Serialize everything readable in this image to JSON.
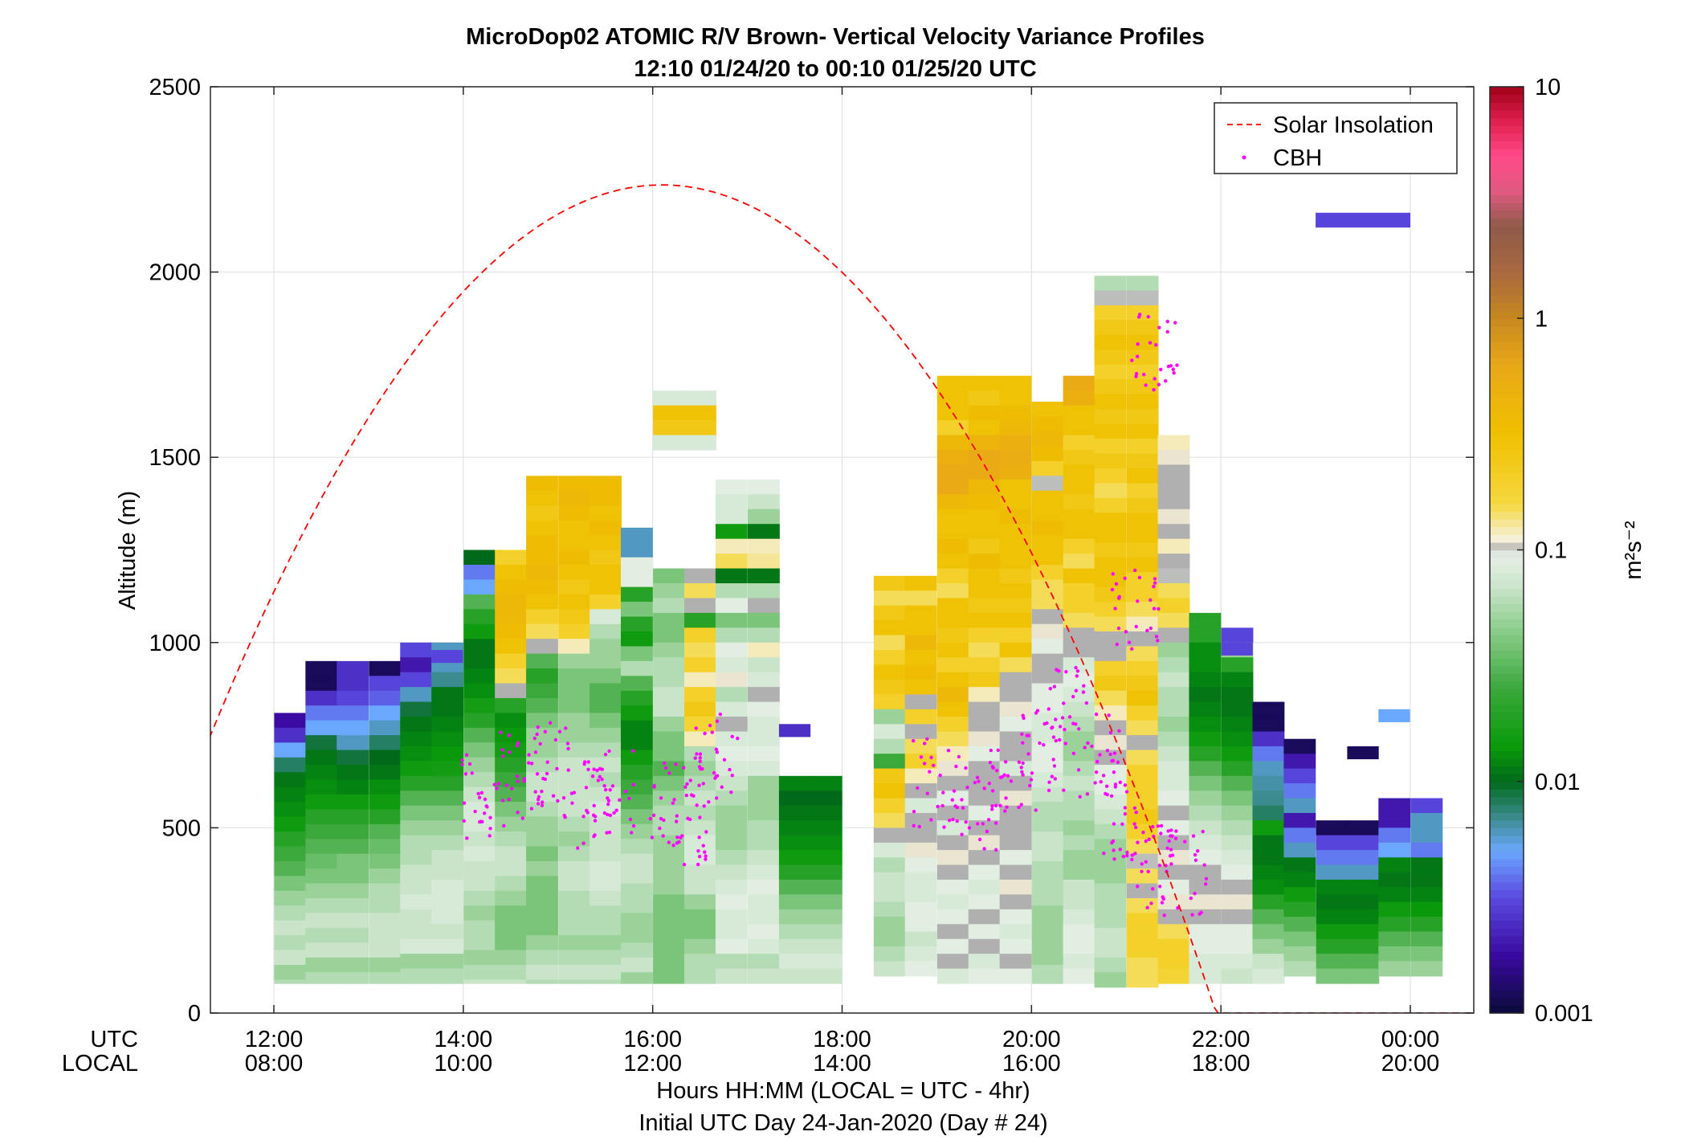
{
  "chart_data": {
    "type": "heatmap",
    "title": "MicroDop02 ATOMIC R/V Brown- Vertical Velocity Variance Profiles",
    "subtitle": "12:10 01/24/20 to 00:10 01/25/20  UTC",
    "ylabel": "Altitude (m)",
    "ylim": [
      0,
      2500
    ],
    "y_ticks": [
      "0",
      "500",
      "1000",
      "1500",
      "2000",
      "2500"
    ],
    "xlim_utc_hours": [
      11.33,
      24.67
    ],
    "x_row_labels": [
      "UTC",
      "LOCAL"
    ],
    "x_ticks_utc": [
      "12:00",
      "14:00",
      "16:00",
      "18:00",
      "20:00",
      "22:00",
      "00:00"
    ],
    "x_ticks_local": [
      "08:00",
      "10:00",
      "12:00",
      "14:00",
      "16:00",
      "18:00",
      "20:00"
    ],
    "xlabel": "Hours HH:MM  (LOCAL = UTC - 4hr)",
    "xlabel2": "Initial UTC Day 24-Jan-2020 (Day # 24)",
    "grid": true,
    "legend_position": "top-right",
    "legend": [
      {
        "label": "Solar Insolation",
        "style": "dashed-line",
        "color": "#ff0000"
      },
      {
        "label": "CBH",
        "style": "dot",
        "color": "#ff00ff"
      }
    ],
    "colorbar": {
      "label": "m²s⁻²",
      "scale": "log",
      "range": [
        0.001,
        10
      ],
      "ticks": [
        "0.001",
        "0.01",
        "0.1",
        "1",
        "10"
      ]
    },
    "solar_insolation_peak_altitude_m": 2235,
    "solar_insolation_peak_utc": 16.1,
    "time_bin_hours": 0.333,
    "altitude_bin_m": 40,
    "columns": [
      {
        "t": 12.17,
        "top": 810,
        "profile": [
          [
            0.0018,
            0.0025,
            0.005,
            0.008,
            0.011,
            0.012,
            0.013,
            0.015,
            0.02,
            0.025,
            0.03,
            0.04,
            0.05,
            0.06,
            0.07,
            0.06,
            0.07
          ],
          0
        ]
      },
      {
        "t": 12.5,
        "top": 950,
        "profile": [
          [
            0.0012,
            0.0012,
            0.0025,
            0.004,
            0.005,
            0.009,
            0.011,
            0.012,
            0.013,
            0.015,
            0.02,
            0.025,
            0.03,
            0.035,
            0.04,
            0.05,
            0.06,
            0.07,
            0.06,
            0.07
          ],
          0
        ]
      },
      {
        "t": 12.83,
        "top": 950,
        "profile": [
          [
            0.0025,
            0.0025,
            0.003,
            0.004,
            0.005,
            0.006,
            0.009,
            0.011,
            0.012,
            0.015,
            0.02,
            0.025,
            0.03,
            0.04,
            0.04,
            0.05,
            0.06,
            0.07,
            0.06,
            0.07
          ],
          0
        ]
      },
      {
        "t": 13.17,
        "top": 950,
        "profile": [
          [
            0.0012,
            0.003,
            0.0035,
            0.005,
            0.006,
            0.008,
            0.01,
            0.011,
            0.013,
            0.015,
            0.02,
            0.03,
            0.035,
            0.04,
            0.05,
            0.06,
            0.06,
            0.07,
            0.07,
            0.07
          ],
          0
        ]
      },
      {
        "t": 13.5,
        "top": 1000,
        "profile": [
          [
            0.003,
            0.002,
            0.003,
            0.006,
            0.009,
            0.011,
            0.012,
            0.013,
            0.015,
            0.02,
            0.03,
            0.04,
            0.05,
            0.06,
            0.06,
            0.07,
            0.07,
            0.08,
            0.07,
            0.07,
            0.08
          ],
          0
        ]
      },
      {
        "t": 13.83,
        "top": 1000,
        "profile": [
          [
            0.006,
            0.006,
            0.007,
            0.011,
            0.011,
            0.012,
            0.013,
            0.014,
            0.016,
            0.02,
            0.03,
            0.04,
            0.05,
            0.06,
            0.07,
            0.07,
            0.08,
            0.08,
            0.08,
            0.07,
            0.08
          ],
          0
        ]
      },
      {
        "t": 14.17,
        "top": 1250,
        "profile": [
          [
            0.01,
            0.004,
            0.005,
            0.03,
            0.02,
            0.015,
            0.011,
            0.011,
            0.012,
            0.013,
            0.016,
            0.02,
            0.03,
            0.04,
            0.05,
            0.06,
            0.07,
            0.08,
            0.08,
            0.07,
            0.08,
            0.07,
            0.07,
            0.06,
            0.05,
            0.06,
            0.06
          ],
          0
        ]
      },
      {
        "t": 14.5,
        "top": 1250,
        "profile": [
          [
            0.2,
            0.3,
            0.35,
            0.4,
            0.4,
            0.35,
            0.3,
            0.2,
            0.15,
            0.1,
            0.02,
            0.013,
            0.014,
            0.016,
            0.02,
            0.025,
            0.03,
            0.04,
            0.05,
            0.06,
            0.07,
            0.07,
            0.06,
            0.05,
            0.04,
            0.04,
            0.04
          ],
          0
        ]
      },
      {
        "t": 14.83,
        "top": 1450,
        "profile": [
          [
            0.35,
            0.3,
            0.25,
            0.3,
            0.35,
            0.35,
            0.4,
            0.35,
            0.3,
            0.2,
            0.15,
            0.1,
            0.03,
            0.02,
            0.025,
            0.03,
            0.04,
            0.05,
            0.05,
            0.06,
            0.07,
            0.07,
            0.06,
            0.05,
            0.05,
            0.04,
            0.05,
            0.04,
            0.04,
            0.04,
            0.04
          ],
          0
        ]
      },
      {
        "t": 15.17,
        "top": 1450,
        "profile": [
          [
            0.35,
            0.4,
            0.35,
            0.3,
            0.3,
            0.35,
            0.3,
            0.25,
            0.3,
            0.25,
            0.2,
            0.12,
            0.05,
            0.04,
            0.04,
            0.04,
            0.05,
            0.05,
            0.06,
            0.07,
            0.07,
            0.07,
            0.07,
            0.06,
            0.05,
            0.06,
            0.07,
            0.07,
            0.06,
            0.06,
            0.06
          ],
          0
        ]
      },
      {
        "t": 15.5,
        "top": 1450,
        "profile": [
          [
            0.35,
            0.35,
            0.3,
            0.35,
            0.3,
            0.25,
            0.3,
            0.3,
            0.2,
            0.08,
            0.06,
            0.05,
            0.05,
            0.04,
            0.03,
            0.03,
            0.04,
            0.05,
            0.06,
            0.07,
            0.06,
            0.07,
            0.08,
            0.07,
            0.07,
            0.07,
            0.08,
            0.08,
            0.07,
            0.06,
            0.06
          ],
          0
        ]
      }
    ],
    "cbh_clusters_utc_m": [
      [
        14.2,
        580
      ],
      [
        14.6,
        640
      ],
      [
        15.0,
        680
      ],
      [
        15.3,
        560
      ],
      [
        15.6,
        600
      ],
      [
        16.2,
        560
      ],
      [
        16.5,
        520
      ],
      [
        16.7,
        700
      ],
      [
        19.0,
        620
      ],
      [
        19.4,
        560
      ],
      [
        19.8,
        640
      ],
      [
        20.1,
        720
      ],
      [
        20.4,
        820
      ],
      [
        20.7,
        700
      ],
      [
        21.0,
        500
      ],
      [
        21.3,
        400
      ],
      [
        21.6,
        380
      ],
      [
        21.1,
        1100
      ],
      [
        21.3,
        1800
      ]
    ],
    "high_layer_band": {
      "t_start": 23.0,
      "t_end": 24.0,
      "altitude": 2140,
      "value": 0.003
    }
  }
}
